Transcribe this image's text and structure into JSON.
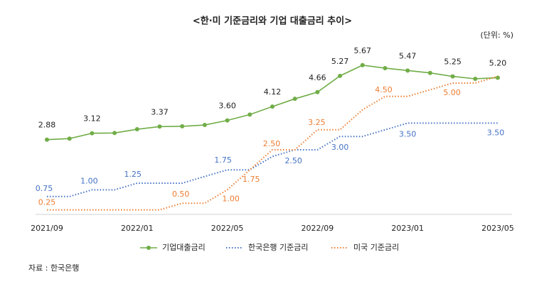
{
  "chart_data": {
    "type": "line",
    "title": "<한·미 기준금리와 기업 대출금리 추이>",
    "unit": "(단위: %)",
    "source": "자료 : 한국은행",
    "categories": [
      "2021/09",
      null,
      null,
      null,
      "2022/01",
      null,
      null,
      null,
      "2022/05",
      null,
      null,
      null,
      "2022/09",
      null,
      null,
      null,
      "2023/01",
      null,
      null,
      null,
      "2023/05"
    ],
    "series": [
      {
        "name": "기업대출금리",
        "color": "#70ad47",
        "style": "solid-marker",
        "values": [
          2.88,
          2.92,
          3.12,
          3.13,
          3.27,
          3.37,
          3.38,
          3.43,
          3.6,
          3.82,
          4.12,
          4.41,
          4.66,
          5.27,
          5.67,
          5.56,
          5.47,
          5.38,
          5.25,
          5.16,
          5.2
        ],
        "value_labels": [
          "2.88",
          null,
          "3.12",
          null,
          null,
          "3.37",
          null,
          null,
          "3.60",
          null,
          "4.12",
          null,
          "4.66",
          "5.27",
          "5.67",
          null,
          "5.47",
          null,
          "5.25",
          null,
          "5.20"
        ]
      },
      {
        "name": "한국은행 기준금리",
        "color": "#4472c4",
        "style": "dotted",
        "values": [
          0.75,
          0.75,
          1.0,
          1.0,
          1.25,
          1.25,
          1.25,
          1.5,
          1.75,
          1.75,
          2.25,
          2.5,
          2.5,
          3.0,
          3.0,
          3.25,
          3.5,
          3.5,
          3.5,
          3.5,
          3.5
        ],
        "value_labels": [
          "0.75",
          null,
          "1.00",
          null,
          "1.25",
          null,
          null,
          null,
          "1.75",
          null,
          null,
          "2.50",
          null,
          "3.00",
          null,
          null,
          "3.50",
          null,
          null,
          null,
          "3.50"
        ]
      },
      {
        "name": "미국 기준금리",
        "color": "#ed7d31",
        "style": "dotted",
        "values": [
          0.25,
          0.25,
          0.25,
          0.25,
          0.25,
          0.25,
          0.5,
          0.5,
          1.0,
          1.75,
          2.5,
          2.5,
          3.25,
          3.25,
          4.0,
          4.5,
          4.5,
          4.75,
          5.0,
          5.0,
          5.25
        ],
        "value_labels": [
          "0.25",
          null,
          null,
          null,
          null,
          null,
          "0.50",
          null,
          "1.00",
          "1.75",
          "2.50",
          null,
          "3.25",
          null,
          null,
          "4.50",
          null,
          null,
          "5.00",
          null,
          null
        ]
      }
    ],
    "legend": "bottom"
  }
}
